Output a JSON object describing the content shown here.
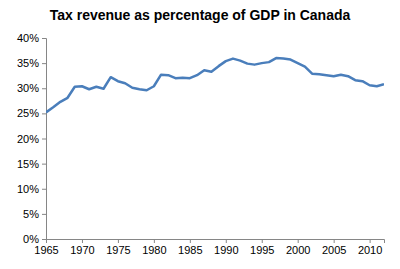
{
  "chart_data": {
    "type": "line",
    "title": "Tax revenue as percentage of GDP in Canada",
    "x": [
      1965,
      1966,
      1967,
      1968,
      1969,
      1970,
      1971,
      1972,
      1973,
      1974,
      1975,
      1976,
      1977,
      1978,
      1979,
      1980,
      1981,
      1982,
      1983,
      1984,
      1985,
      1986,
      1987,
      1988,
      1989,
      1990,
      1991,
      1992,
      1993,
      1994,
      1995,
      1996,
      1997,
      1998,
      1999,
      2000,
      2001,
      2002,
      2003,
      2004,
      2005,
      2006,
      2007,
      2008,
      2009,
      2010,
      2011,
      2012
    ],
    "values": [
      25.2,
      26.2,
      27.3,
      28.1,
      30.3,
      30.4,
      29.8,
      30.3,
      29.9,
      32.2,
      31.4,
      31.0,
      30.1,
      29.8,
      29.6,
      30.4,
      32.7,
      32.6,
      32.0,
      32.1,
      32.0,
      32.6,
      33.6,
      33.3,
      34.4,
      35.4,
      35.9,
      35.5,
      34.9,
      34.7,
      35.0,
      35.2,
      36.0,
      35.9,
      35.7,
      35.0,
      34.3,
      32.9,
      32.8,
      32.6,
      32.4,
      32.7,
      32.4,
      31.6,
      31.4,
      30.6,
      30.4,
      30.8
    ],
    "color": "#4a7ebb",
    "xlim": [
      1965,
      2012
    ],
    "xticks": [
      1965,
      1970,
      1975,
      1980,
      1985,
      1990,
      1995,
      2000,
      2005,
      2010
    ],
    "ylim": [
      0,
      40
    ],
    "yticks": [
      {
        "value": 0,
        "label": "0%"
      },
      {
        "value": 5,
        "label": "5%"
      },
      {
        "value": 10,
        "label": "10%"
      },
      {
        "value": 15,
        "label": "15%"
      },
      {
        "value": 20,
        "label": "20%"
      },
      {
        "value": 25,
        "label": "25%"
      },
      {
        "value": 30,
        "label": "30%"
      },
      {
        "value": 35,
        "label": "35%"
      },
      {
        "value": 40,
        "label": "40%"
      }
    ],
    "grid": false
  }
}
